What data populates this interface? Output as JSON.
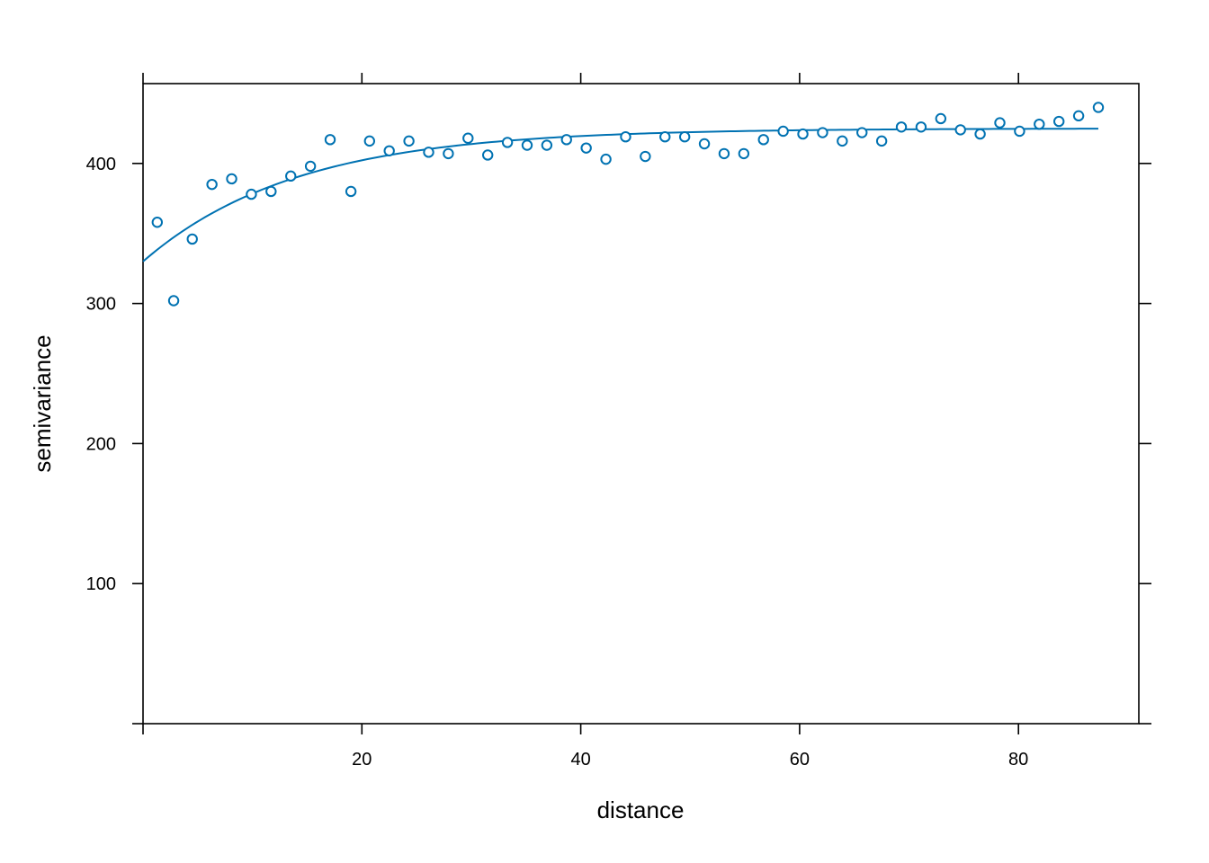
{
  "chart_data": {
    "type": "scatter",
    "title": "",
    "xlabel": "distance",
    "ylabel": "semivariance",
    "xlim": [
      0,
      91
    ],
    "ylim": [
      0,
      457
    ],
    "xticks": [
      20,
      40,
      60,
      80
    ],
    "yticks": [
      100,
      200,
      300,
      400
    ],
    "grid": false,
    "legend": "none",
    "point_color": "#0072B2",
    "line_color": "#0072B2",
    "series": [
      {
        "type": "points",
        "x": [
          1.3,
          2.8,
          4.5,
          6.3,
          8.1,
          9.9,
          11.7,
          13.5,
          15.3,
          17.1,
          19.0,
          20.7,
          22.5,
          24.3,
          26.1,
          27.9,
          29.7,
          31.5,
          33.3,
          35.1,
          36.9,
          38.7,
          40.5,
          42.3,
          44.1,
          45.9,
          47.7,
          49.5,
          51.3,
          53.1,
          54.9,
          56.7,
          58.5,
          60.3,
          62.1,
          63.9,
          65.7,
          67.5,
          69.3,
          71.1,
          72.9,
          74.7,
          76.5,
          78.3,
          80.1,
          81.9,
          83.7,
          85.5,
          87.3
        ],
        "y": [
          358,
          302,
          346,
          385,
          389,
          378,
          380,
          391,
          398,
          417,
          380,
          416,
          409,
          416,
          408,
          407,
          418,
          406,
          415,
          413,
          413,
          417,
          411,
          403,
          419,
          405,
          419,
          419,
          414,
          407,
          407,
          417,
          423,
          421,
          422,
          416,
          422,
          416,
          426,
          426,
          432,
          424,
          421,
          429,
          423,
          428,
          430,
          434,
          440
        ]
      },
      {
        "type": "line",
        "model": "exponential variogram",
        "nugget": 330,
        "psill": 95,
        "range": 14,
        "x_from": 0,
        "x_to": 87.3
      }
    ]
  }
}
